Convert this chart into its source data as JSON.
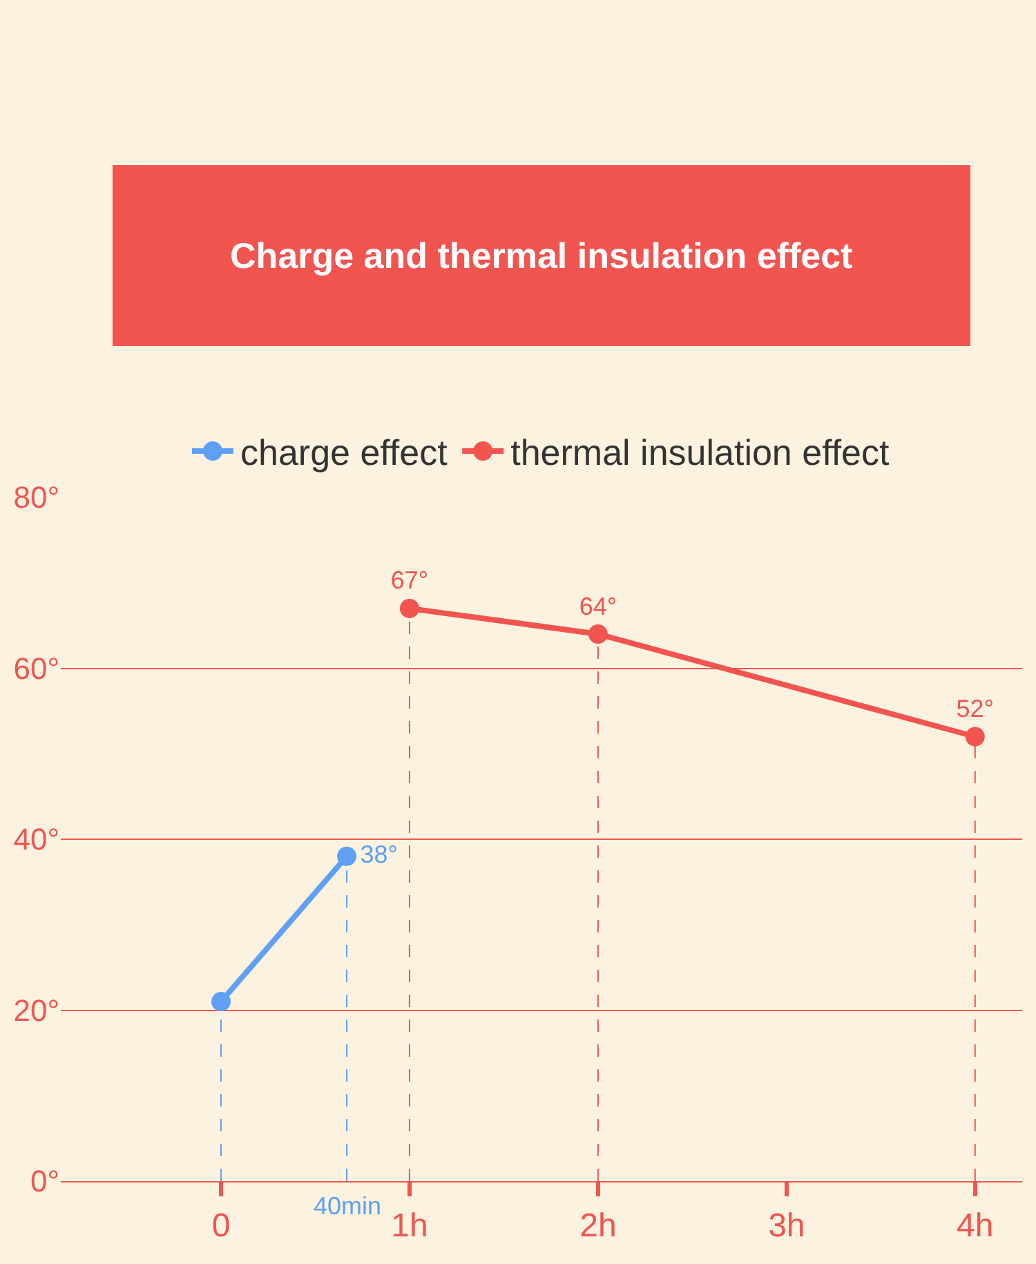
{
  "chart_data": {
    "type": "line",
    "title": "Charge and thermal insulation effect",
    "series": [
      {
        "name": "charge effect",
        "color": "#5fa0f5",
        "x": [
          0,
          0.667
        ],
        "values": [
          21,
          38
        ],
        "value_labels": [
          null,
          "38°"
        ]
      },
      {
        "name": "thermal insulation effect",
        "color": "#f25450",
        "x": [
          1,
          2,
          4
        ],
        "values": [
          67,
          64,
          52
        ],
        "value_labels": [
          "67°",
          "64°",
          "52°"
        ]
      }
    ],
    "xlim": [
      -0.85,
      4.25
    ],
    "xticks": [
      {
        "value": 0,
        "label": "0"
      },
      {
        "value": 1,
        "label": "1h"
      },
      {
        "value": 2,
        "label": "2h"
      },
      {
        "value": 3,
        "label": "3h"
      },
      {
        "value": 4,
        "label": "4h"
      }
    ],
    "ylim": [
      0,
      80
    ],
    "yticks": [
      {
        "value": 0,
        "label": "0°"
      },
      {
        "value": 20,
        "label": "20°"
      },
      {
        "value": 40,
        "label": "40°"
      },
      {
        "value": 60,
        "label": "60°"
      },
      {
        "value": 80,
        "label": "80°"
      }
    ],
    "annotations": [
      {
        "text": "40min",
        "x": 0.667,
        "y": 0
      }
    ],
    "ref_lines": [
      {
        "axis": "x",
        "value": 0,
        "label": null,
        "color": "#5fa0f5",
        "line_style": "dashed"
      },
      {
        "axis": "x",
        "value": 0.667,
        "label": null,
        "color": "#5fa0f5",
        "line_style": "dashed"
      },
      {
        "axis": "x",
        "value": 1,
        "label": null,
        "color": "#f25450",
        "line_style": "dashed"
      },
      {
        "axis": "x",
        "value": 2,
        "label": null,
        "color": "#f25450",
        "line_style": "dashed"
      },
      {
        "axis": "x",
        "value": 4,
        "label": null,
        "color": "#f25450",
        "line_style": "dashed"
      }
    ],
    "grid": "y",
    "legend": "top",
    "marker": "circle",
    "line_style": "solid"
  }
}
